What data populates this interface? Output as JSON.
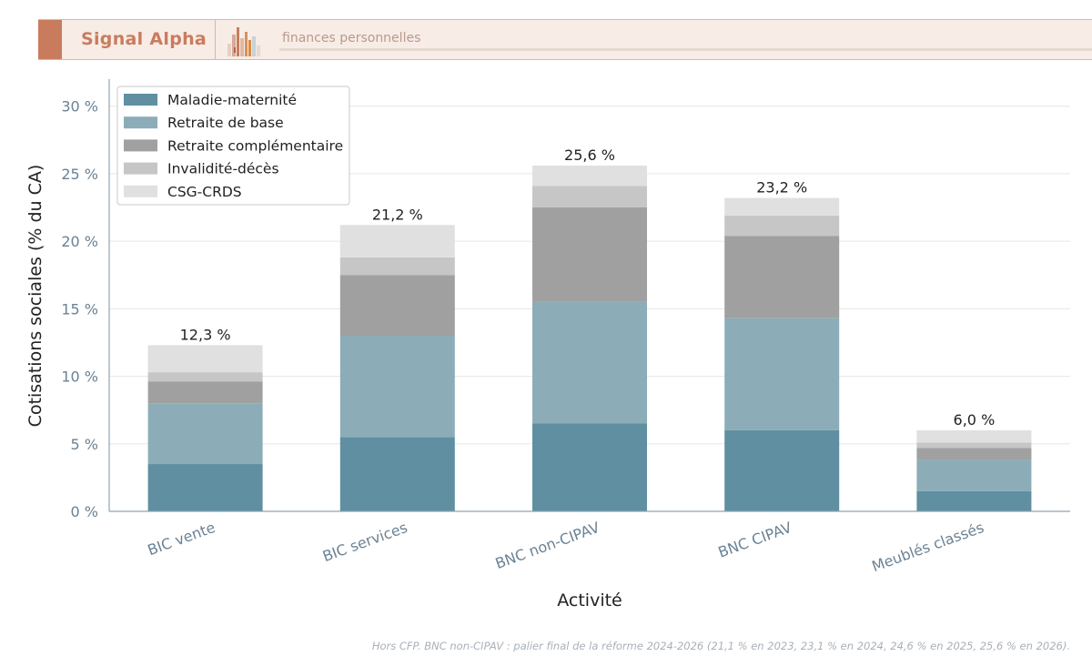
{
  "header": {
    "brand": "Signal Alpha",
    "tagline": "finances personnelles"
  },
  "colors": {
    "accent": "#c97c5d",
    "axis_text": "#6b8294"
  },
  "chart_data": {
    "type": "bar",
    "stacked": true,
    "xlabel": "Activité",
    "ylabel": "Cotisations sociales (% du CA)",
    "ylim": [
      0,
      32
    ],
    "yticks": [
      0,
      5,
      10,
      15,
      20,
      25,
      30
    ],
    "ytick_labels": [
      "0 %",
      "5 %",
      "10 %",
      "15 %",
      "20 %",
      "25 %",
      "30 %"
    ],
    "grid": true,
    "legend_position": "top-left",
    "categories": [
      "BIC vente",
      "BIC services",
      "BNC non-CIPAV",
      "BNC CIPAV",
      "Meublés classés"
    ],
    "series": [
      {
        "name": "Maladie-maternité",
        "color": "#5f8fa1",
        "values": [
          3.5,
          5.5,
          6.5,
          6.0,
          1.5
        ]
      },
      {
        "name": "Retraite de base",
        "color": "#8cadb8",
        "values": [
          4.5,
          7.5,
          9.0,
          8.3,
          2.3
        ]
      },
      {
        "name": "Retraite complémentaire",
        "color": "#a0a0a0",
        "values": [
          1.6,
          4.5,
          7.0,
          6.1,
          0.9
        ]
      },
      {
        "name": "Invalidité-décès",
        "color": "#c6c6c6",
        "values": [
          0.7,
          1.3,
          1.6,
          1.5,
          0.4
        ]
      },
      {
        "name": "CSG-CRDS",
        "color": "#e0e0e0",
        "values": [
          2.0,
          2.4,
          1.5,
          1.3,
          0.9
        ]
      }
    ],
    "total_labels": [
      "12,3 %",
      "21,2 %",
      "25,6 %",
      "23,2 %",
      "6,0 %"
    ],
    "totals": [
      12.3,
      21.2,
      25.6,
      23.2,
      6.0
    ]
  },
  "footnote": "Hors CFP. BNC non-CIPAV : palier final de la réforme 2024-2026 (21,1 % en 2023, 23,1 % en 2024, 24,6 % en 2025, 25,6 % en 2026)."
}
